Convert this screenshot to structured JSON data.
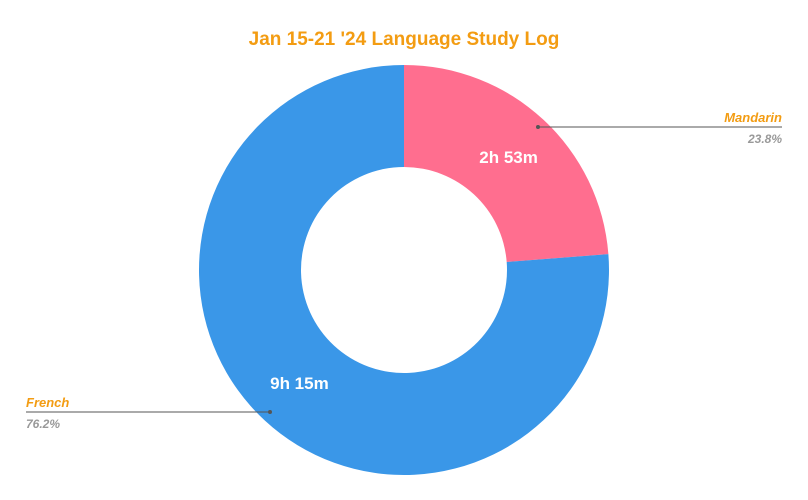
{
  "chart_data": {
    "type": "pie",
    "donut": true,
    "title": "Jan 15-21 '24 Language Study Log",
    "slices": [
      {
        "label": "Mandarin",
        "value": 2.883,
        "display_value": "2h 53m",
        "percent_label": "23.8%",
        "color": "#ff6e8f"
      },
      {
        "label": "French",
        "value": 9.25,
        "display_value": "9h 15m",
        "percent_label": "76.2%",
        "color": "#3a97e8"
      }
    ],
    "legend": "none"
  },
  "colors": {
    "title": "#f39c12",
    "callout_name": "#f39c12",
    "callout_pct": "#999999",
    "leader_line": "#555555",
    "background": "#ffffff"
  }
}
